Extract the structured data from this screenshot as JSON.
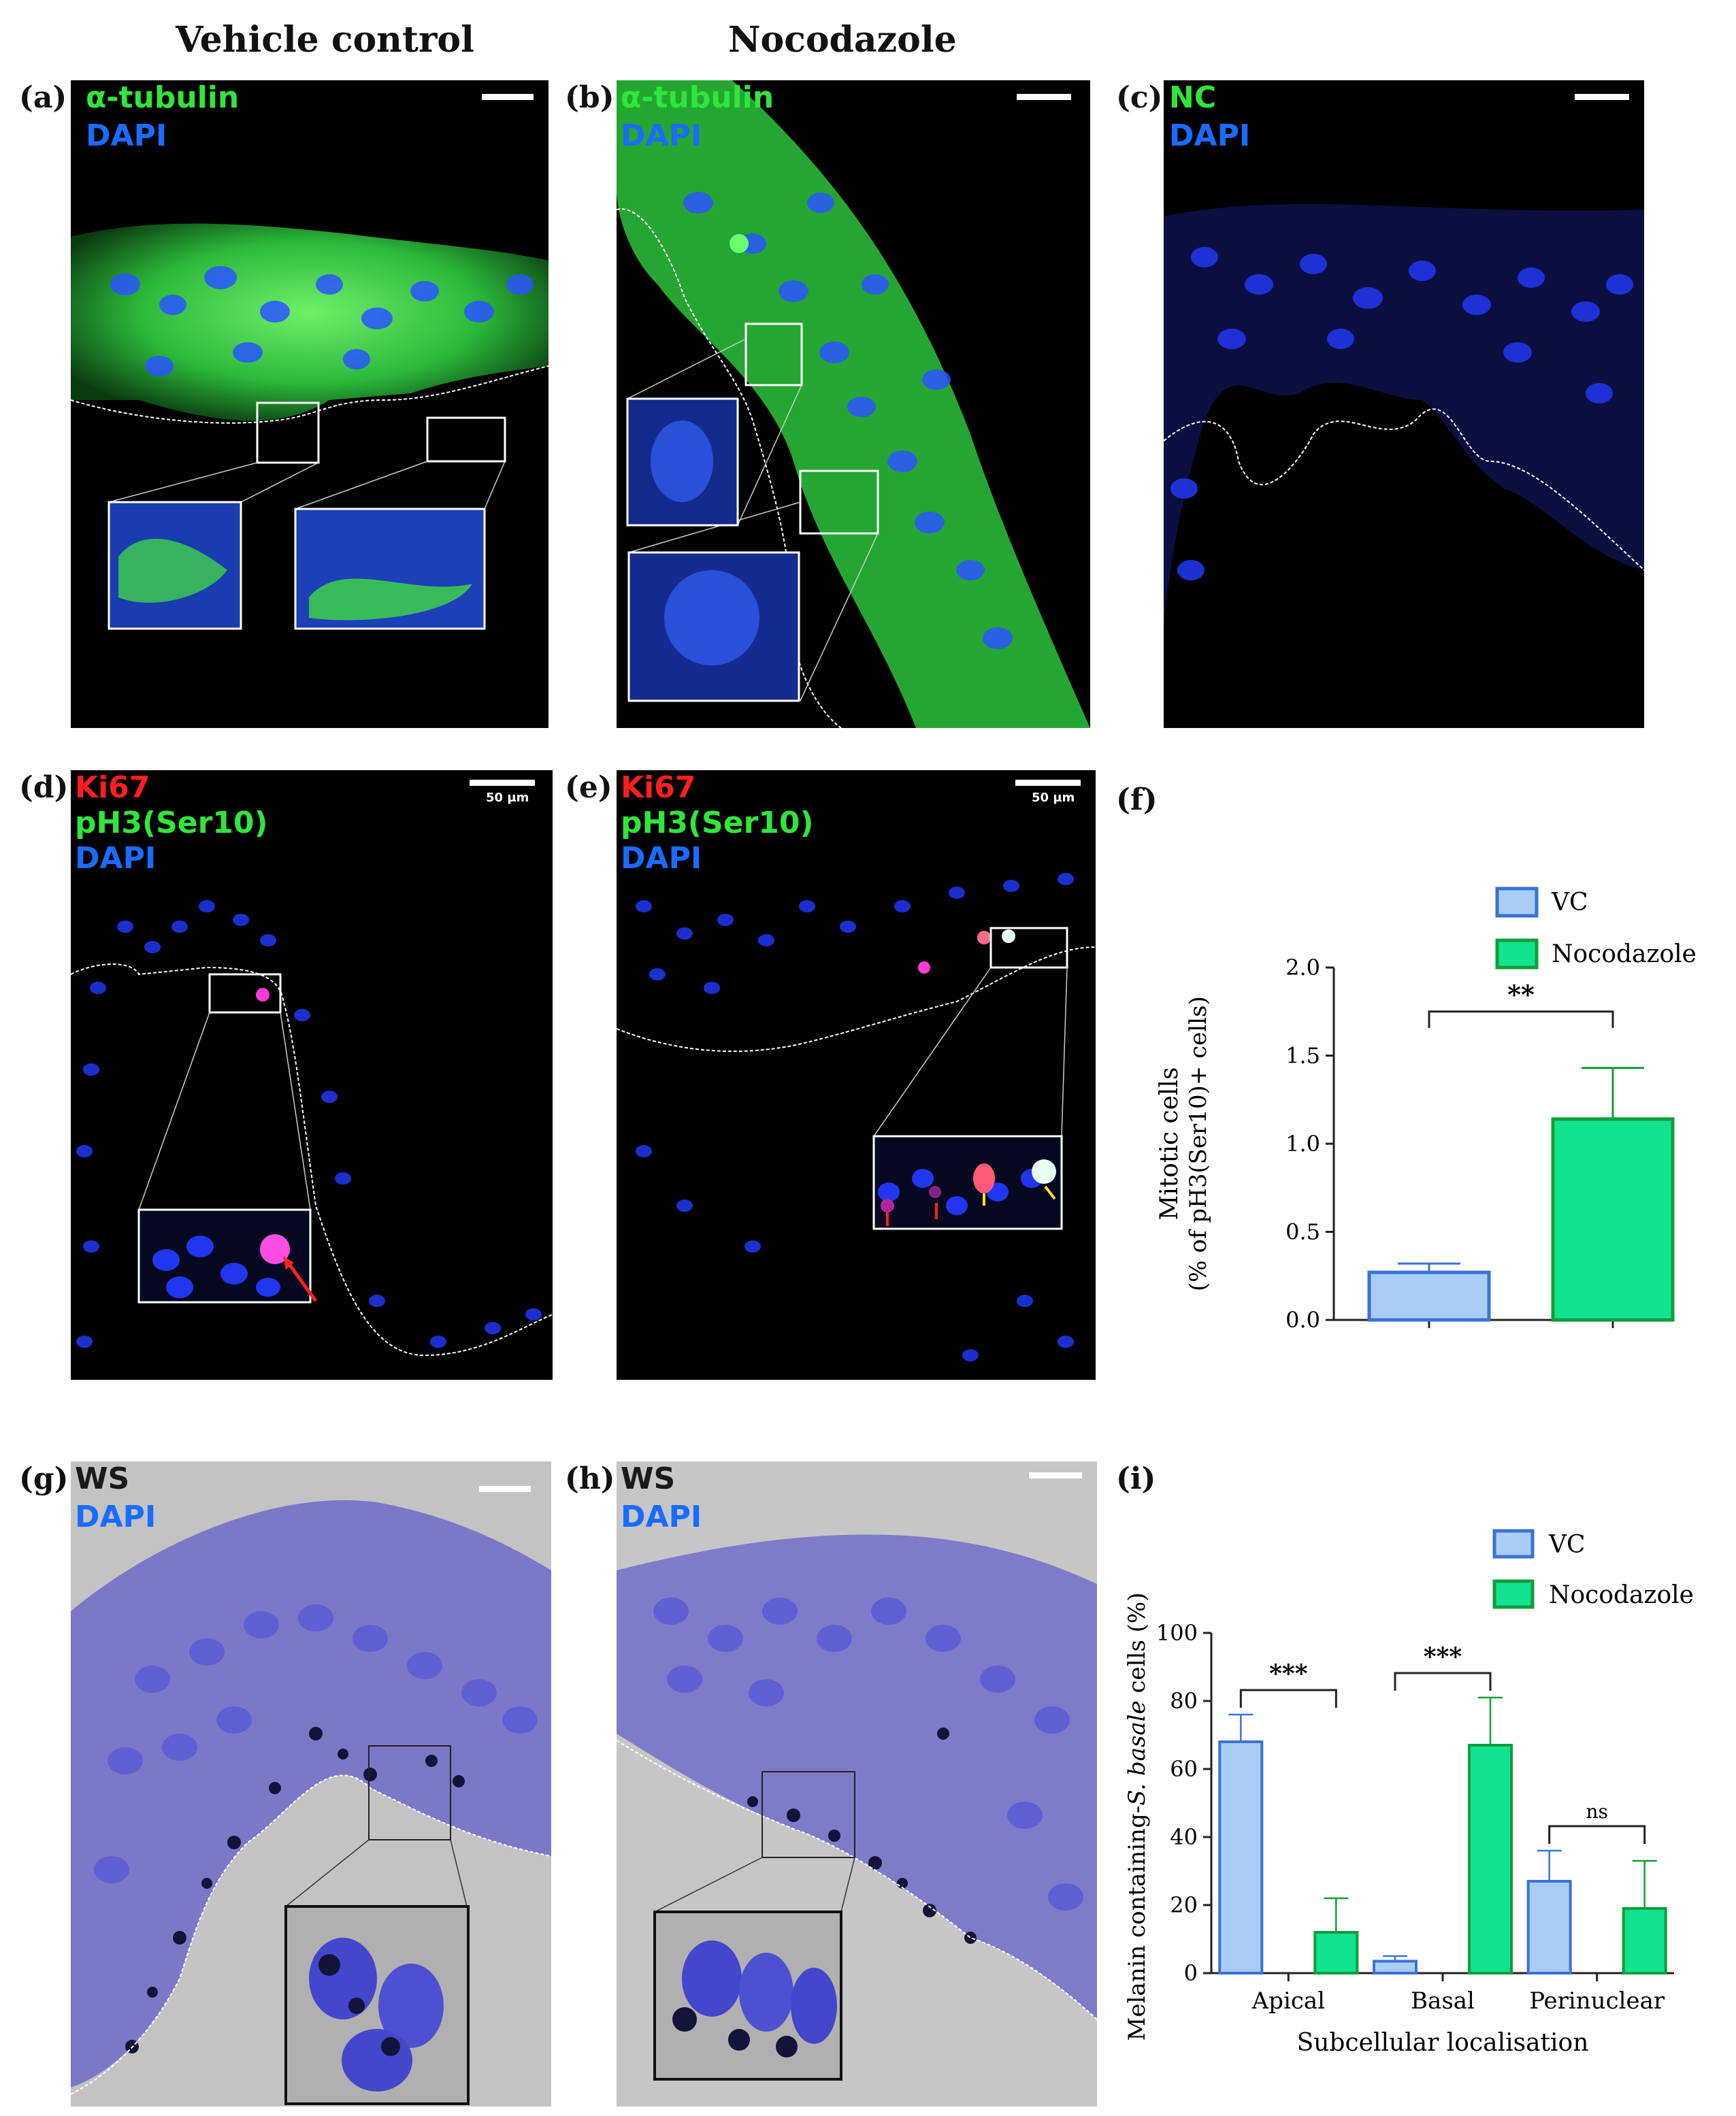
{
  "columns": {
    "vehicle": "Vehicle control",
    "nocodazole": "Nocodazole"
  },
  "panels": {
    "a": {
      "label": "(a)",
      "stains": [
        "α-tubulin",
        "DAPI"
      ]
    },
    "b": {
      "label": "(b)",
      "stains": [
        "α-tubulin",
        "DAPI"
      ]
    },
    "c": {
      "label": "(c)",
      "stains": [
        "NC",
        "DAPI"
      ]
    },
    "d": {
      "label": "(d)",
      "stains": [
        "Ki67",
        "pH3(Ser10)",
        "DAPI"
      ],
      "scale": "50 µm"
    },
    "e": {
      "label": "(e)",
      "stains": [
        "Ki67",
        "pH3(Ser10)",
        "DAPI"
      ],
      "scale": "50 µm"
    },
    "f": {
      "label": "(f)"
    },
    "g": {
      "label": "(g)",
      "stains": [
        "WS",
        "DAPI"
      ]
    },
    "h": {
      "label": "(h)",
      "stains": [
        "WS",
        "DAPI"
      ]
    },
    "i": {
      "label": "(i)"
    }
  },
  "colors": {
    "vc_fill": "#a9cdf5",
    "vc_stroke": "#3a72d6",
    "noc_fill": "#12e391",
    "noc_stroke": "#119e3b",
    "tubulin": "#2fe63a",
    "dapi": "#1a3cff",
    "ki67": "#ff1e1e"
  },
  "chart_data": [
    {
      "type": "bar",
      "panel": "f",
      "ylabel": [
        "Mitotic cells",
        "(% of pH3(Ser10)+ cells)"
      ],
      "xlabel": "",
      "ylim": [
        0,
        2.0
      ],
      "yticks": [
        "0.0",
        "0.5",
        "1.0",
        "1.5",
        "2.0"
      ],
      "legend": {
        "position": "top-right",
        "entries": [
          "VC",
          "Nocodazole"
        ]
      },
      "series": [
        {
          "name": "VC",
          "values": [
            0.27
          ],
          "error": [
            0.05
          ]
        },
        {
          "name": "Nocodazole",
          "values": [
            1.14
          ],
          "error": [
            0.29
          ]
        }
      ],
      "significance": [
        {
          "label": "**"
        }
      ]
    },
    {
      "type": "bar",
      "panel": "i",
      "ylabel": {
        "prefix": "Melanin containing-",
        "italic": "S. basale",
        "suffix": " cells (%)"
      },
      "xlabel": "Subcellular localisation",
      "categories": [
        "Apical",
        "Basal",
        "Perinuclear"
      ],
      "ylim": [
        0,
        100
      ],
      "yticks": [
        "0",
        "20",
        "40",
        "60",
        "80",
        "100"
      ],
      "legend": {
        "position": "top-right",
        "entries": [
          "VC",
          "Nocodazole"
        ]
      },
      "series": [
        {
          "name": "VC",
          "values": [
            68,
            3.5,
            27
          ],
          "error": [
            8,
            1.5,
            9
          ]
        },
        {
          "name": "Nocodazole",
          "values": [
            12,
            67,
            19
          ],
          "error": [
            10,
            14,
            14
          ]
        }
      ],
      "significance": [
        {
          "category": "Apical",
          "label": "***"
        },
        {
          "category": "Basal",
          "label": "***"
        },
        {
          "category": "Perinuclear",
          "label": "ns"
        }
      ]
    }
  ]
}
